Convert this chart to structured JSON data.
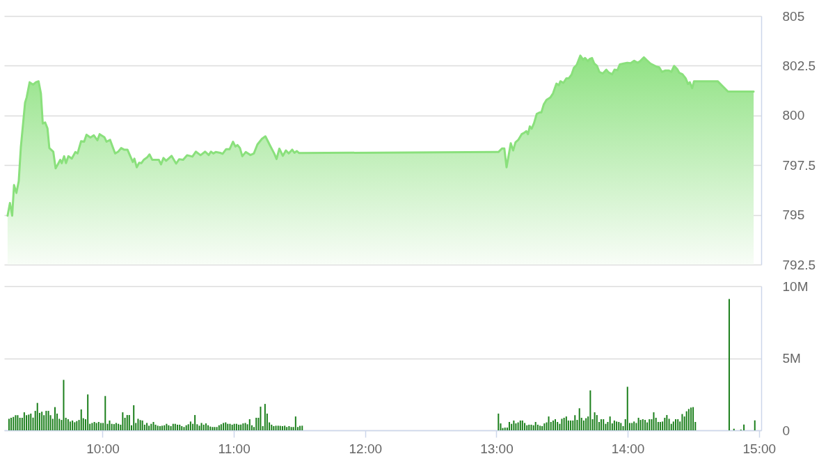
{
  "chart_data": [
    {
      "type": "area",
      "color": "#8ae07c",
      "xlim": [
        9.25,
        15.017
      ],
      "ylim": [
        792.5,
        805
      ],
      "yticks": [
        792.5,
        795,
        797.5,
        800,
        802.5,
        805
      ],
      "grid": "y",
      "tick_labels": "y",
      "x": [
        9.276,
        9.294,
        9.311,
        9.325,
        9.343,
        9.361,
        9.377,
        9.409,
        9.421,
        9.444,
        9.47,
        9.491,
        9.512,
        9.53,
        9.544,
        9.562,
        9.58,
        9.594,
        9.624,
        9.642,
        9.659,
        9.677,
        9.689,
        9.707,
        9.721,
        9.739,
        9.765,
        9.792,
        9.809,
        9.836,
        9.859,
        9.877,
        9.907,
        9.933,
        9.96,
        9.977,
        10.013,
        10.03,
        10.057,
        10.095,
        10.119,
        10.141,
        10.163,
        10.189,
        10.23,
        10.242,
        10.26,
        10.278,
        10.295,
        10.313,
        10.339,
        10.357,
        10.378,
        10.428,
        10.445,
        10.463,
        10.484,
        10.525,
        10.56,
        10.583,
        10.613,
        10.643,
        10.684,
        10.71,
        10.746,
        10.781,
        10.808,
        10.825,
        10.843,
        10.861,
        10.896,
        10.914,
        10.94,
        10.967,
        10.993,
        11.011,
        11.028,
        11.046,
        11.064,
        11.09,
        11.126,
        11.152,
        11.179,
        11.214,
        11.24,
        11.276,
        11.307,
        11.325,
        11.346,
        11.373,
        11.396,
        11.417,
        11.444,
        11.461,
        11.479,
        11.497,
        13.0,
        13.015,
        13.042,
        13.06,
        13.077,
        13.109,
        13.127,
        13.145,
        13.166,
        13.192,
        13.21,
        13.227,
        13.24,
        13.254,
        13.268,
        13.286,
        13.307,
        13.328,
        13.342,
        13.36,
        13.381,
        13.41,
        13.431,
        13.448,
        13.457,
        13.475,
        13.487,
        13.51,
        13.533,
        13.551,
        13.572,
        13.59,
        13.611,
        13.639,
        13.66,
        13.675,
        13.696,
        13.71,
        13.728,
        13.745,
        13.766,
        13.784,
        13.81,
        13.837,
        13.855,
        13.881,
        13.899,
        13.922,
        13.94,
        13.969,
        13.996,
        14.022,
        14.049,
        14.075,
        14.093,
        14.123,
        14.146,
        14.173,
        14.194,
        14.217,
        14.24,
        14.261,
        14.287,
        14.314,
        14.332,
        14.353,
        14.376,
        14.393,
        14.417,
        14.441,
        14.459,
        14.473,
        14.491,
        14.505,
        14.685,
        14.764,
        14.959
      ],
      "values": [
        794.96,
        795.6,
        794.96,
        796.5,
        796.1,
        796.7,
        798.4,
        800.64,
        800.9,
        801.67,
        801.55,
        801.67,
        801.72,
        801.1,
        799.59,
        799.65,
        799.35,
        798.36,
        798.18,
        797.34,
        797.54,
        797.77,
        797.6,
        797.95,
        797.6,
        797.95,
        797.83,
        798.16,
        798.09,
        798.71,
        798.68,
        799.03,
        798.89,
        799.0,
        798.75,
        799.06,
        798.91,
        798.68,
        798.77,
        798.09,
        798.18,
        798.36,
        798.28,
        798.28,
        797.66,
        797.83,
        797.39,
        797.62,
        797.6,
        797.77,
        797.89,
        798.04,
        797.77,
        797.77,
        797.54,
        797.86,
        797.72,
        797.97,
        797.58,
        797.8,
        797.77,
        798.0,
        797.93,
        798.18,
        798.0,
        798.18,
        798.01,
        798.18,
        798.09,
        798.16,
        798.12,
        798.07,
        798.3,
        798.3,
        798.68,
        798.44,
        798.51,
        798.36,
        797.95,
        798.16,
        798.01,
        798.09,
        798.54,
        798.83,
        798.95,
        798.48,
        798.09,
        797.81,
        798.33,
        797.97,
        798.24,
        798.09,
        798.28,
        798.12,
        798.21,
        798.11,
        798.16,
        798.16,
        798.34,
        798.34,
        797.39,
        798.6,
        798.24,
        798.65,
        798.77,
        799.06,
        799.12,
        799.21,
        799.06,
        799.45,
        799.33,
        799.61,
        800.08,
        800.15,
        800.15,
        800.55,
        800.78,
        800.9,
        801.11,
        801.44,
        801.6,
        801.52,
        801.72,
        801.64,
        801.87,
        801.87,
        802.05,
        802.4,
        802.54,
        803.01,
        802.81,
        802.89,
        802.73,
        802.84,
        802.89,
        802.61,
        802.49,
        802.19,
        802.11,
        802.3,
        802.16,
        802.07,
        802.3,
        802.28,
        802.57,
        802.61,
        802.65,
        802.63,
        802.75,
        802.65,
        802.72,
        802.92,
        802.77,
        802.61,
        802.54,
        802.46,
        802.42,
        802.19,
        802.26,
        802.26,
        802.19,
        802.49,
        802.34,
        802.14,
        802.07,
        801.87,
        801.58,
        801.67,
        801.37,
        801.72,
        801.72,
        801.2,
        801.2
      ]
    },
    {
      "type": "bar",
      "color": "#1b7f1b",
      "xlim": [
        9.25,
        15.017
      ],
      "xticks": [
        {
          "value": 10,
          "label": "10:00"
        },
        {
          "value": 11,
          "label": "11:00"
        },
        {
          "value": 12,
          "label": "12:00"
        },
        {
          "value": 13,
          "label": "13:00"
        },
        {
          "value": 14,
          "label": "14:00"
        },
        {
          "value": 15,
          "label": "15:00"
        }
      ],
      "ylim": [
        0,
        10000000
      ],
      "yticks": [
        0,
        {
          "value": 5000000,
          "label": "5M"
        },
        {
          "value": 10000000,
          "label": "10M"
        }
      ],
      "grid": "y",
      "x": [
        9.287,
        9.303,
        9.32,
        9.337,
        9.353,
        9.37,
        9.387,
        9.403,
        9.42,
        9.437,
        9.453,
        9.47,
        9.487,
        9.503,
        9.52,
        9.537,
        9.553,
        9.57,
        9.587,
        9.603,
        9.62,
        9.637,
        9.653,
        9.67,
        9.687,
        9.703,
        9.72,
        9.737,
        9.753,
        9.77,
        9.787,
        9.803,
        9.82,
        9.837,
        9.853,
        9.87,
        9.887,
        9.903,
        9.92,
        9.937,
        9.953,
        9.97,
        9.987,
        10.003,
        10.02,
        10.037,
        10.053,
        10.07,
        10.087,
        10.103,
        10.12,
        10.137,
        10.153,
        10.17,
        10.187,
        10.203,
        10.22,
        10.237,
        10.253,
        10.27,
        10.287,
        10.303,
        10.32,
        10.337,
        10.353,
        10.37,
        10.387,
        10.403,
        10.42,
        10.437,
        10.453,
        10.47,
        10.487,
        10.503,
        10.52,
        10.537,
        10.553,
        10.57,
        10.587,
        10.603,
        10.62,
        10.637,
        10.653,
        10.67,
        10.687,
        10.703,
        10.72,
        10.737,
        10.753,
        10.77,
        10.787,
        10.803,
        10.82,
        10.837,
        10.853,
        10.87,
        10.887,
        10.903,
        10.92,
        10.937,
        10.953,
        10.97,
        10.987,
        11.003,
        11.02,
        11.037,
        11.053,
        11.07,
        11.087,
        11.103,
        11.12,
        11.137,
        11.153,
        11.17,
        11.187,
        11.203,
        11.22,
        11.237,
        11.253,
        11.27,
        11.287,
        11.303,
        11.32,
        11.337,
        11.353,
        11.37,
        11.387,
        11.403,
        11.42,
        11.437,
        11.453,
        11.47,
        11.487,
        11.503,
        11.52,
        13.015,
        13.032,
        13.048,
        13.065,
        13.082,
        13.098,
        13.115,
        13.132,
        13.148,
        13.165,
        13.182,
        13.198,
        13.215,
        13.232,
        13.248,
        13.265,
        13.282,
        13.298,
        13.315,
        13.332,
        13.348,
        13.365,
        13.382,
        13.398,
        13.415,
        13.432,
        13.448,
        13.465,
        13.482,
        13.498,
        13.515,
        13.532,
        13.548,
        13.565,
        13.582,
        13.598,
        13.615,
        13.632,
        13.648,
        13.665,
        13.682,
        13.698,
        13.715,
        13.732,
        13.748,
        13.765,
        13.782,
        13.798,
        13.815,
        13.832,
        13.848,
        13.865,
        13.882,
        13.898,
        13.915,
        13.932,
        13.948,
        13.965,
        13.982,
        13.998,
        14.015,
        14.032,
        14.048,
        14.065,
        14.082,
        14.098,
        14.115,
        14.132,
        14.148,
        14.165,
        14.182,
        14.198,
        14.215,
        14.232,
        14.248,
        14.265,
        14.282,
        14.298,
        14.315,
        14.332,
        14.348,
        14.365,
        14.382,
        14.398,
        14.415,
        14.432,
        14.448,
        14.465,
        14.482,
        14.498,
        14.515,
        14.773,
        14.809,
        14.862,
        14.885,
        14.968
      ],
      "values": [
        800000,
        870000,
        930000,
        1050000,
        1050000,
        870000,
        870000,
        1250000,
        1050000,
        1090000,
        1160000,
        880000,
        1350000,
        1900000,
        1210000,
        1290000,
        1050000,
        1350000,
        1350000,
        1050000,
        800000,
        1610000,
        1160000,
        800000,
        720000,
        3500000,
        870000,
        770000,
        610000,
        680000,
        560000,
        640000,
        720000,
        1450000,
        840000,
        770000,
        2490000,
        450000,
        510000,
        580000,
        510000,
        580000,
        510000,
        510000,
        2380000,
        450000,
        680000,
        450000,
        430000,
        510000,
        450000,
        390000,
        1250000,
        870000,
        1060000,
        1060000,
        350000,
        1740000,
        510000,
        800000,
        710000,
        680000,
        390000,
        510000,
        320000,
        450000,
        580000,
        390000,
        320000,
        290000,
        320000,
        350000,
        450000,
        350000,
        290000,
        450000,
        450000,
        390000,
        390000,
        290000,
        230000,
        350000,
        420000,
        610000,
        450000,
        1060000,
        420000,
        320000,
        510000,
        390000,
        480000,
        350000,
        260000,
        230000,
        230000,
        230000,
        350000,
        420000,
        510000,
        550000,
        450000,
        450000,
        390000,
        450000,
        450000,
        390000,
        400000,
        480000,
        510000,
        420000,
        770000,
        350000,
        230000,
        870000,
        870000,
        1640000,
        290000,
        1830000,
        1160000,
        550000,
        390000,
        290000,
        320000,
        320000,
        310000,
        290000,
        320000,
        230000,
        290000,
        230000,
        230000,
        960000,
        230000,
        310000,
        320000,
        1160000,
        480000,
        160000,
        190000,
        190000,
        580000,
        450000,
        680000,
        480000,
        550000,
        680000,
        680000,
        510000,
        350000,
        390000,
        390000,
        350000,
        580000,
        390000,
        320000,
        290000,
        480000,
        550000,
        960000,
        580000,
        680000,
        770000,
        580000,
        450000,
        800000,
        870000,
        960000,
        680000,
        680000,
        680000,
        1050000,
        720000,
        1530000,
        870000,
        680000,
        840000,
        960000,
        2770000,
        770000,
        1250000,
        1060000,
        580000,
        770000,
        770000,
        450000,
        580000,
        960000,
        480000,
        680000,
        610000,
        580000,
        510000,
        290000,
        770000,
        3020000,
        510000,
        510000,
        610000,
        510000,
        870000,
        720000,
        770000,
        720000,
        550000,
        770000,
        770000,
        1250000,
        870000,
        580000,
        580000,
        610000,
        870000,
        1060000,
        800000,
        450000,
        610000,
        770000,
        770000,
        610000,
        1130000,
        960000,
        1320000,
        1480000,
        1580000,
        1610000,
        580000,
        9110000,
        110000,
        50000,
        400000,
        690000
      ]
    }
  ]
}
